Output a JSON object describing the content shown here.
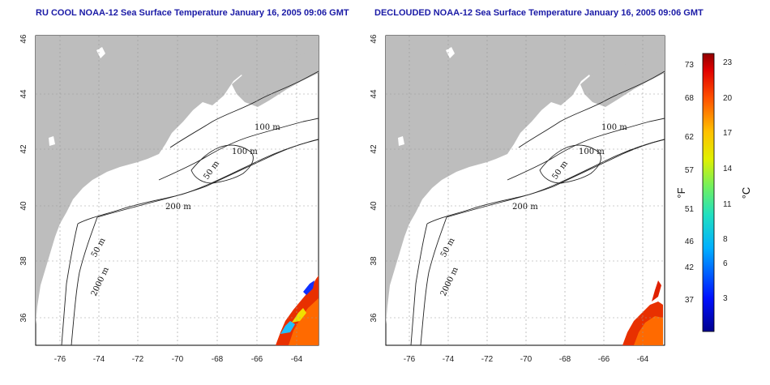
{
  "panels": [
    {
      "title": "RU COOL NOAA-12 Sea Surface Temperature January 16, 2005 09:06 GMT",
      "contour_labels": [
        "100 m",
        "100 m",
        "50 m",
        "200 m",
        "50 m",
        "2000 m"
      ]
    },
    {
      "title": "DECLOUDED NOAA-12 Sea Surface Temperature January 16, 2005 09:06 GMT",
      "contour_labels": [
        "100 m",
        "100 m",
        "50 m",
        "200 m",
        "50 m",
        "2000 m"
      ]
    }
  ],
  "axes": {
    "lon_ticks": [
      "-76",
      "-74",
      "-72",
      "-70",
      "-68",
      "-66",
      "-64"
    ],
    "lat_ticks": [
      "46",
      "44",
      "42",
      "40",
      "38",
      "36"
    ]
  },
  "colorbar": {
    "fahrenheit_ticks": [
      "73",
      "68",
      "62",
      "57",
      "51",
      "46",
      "42",
      "37"
    ],
    "celsius_ticks": [
      "23",
      "20",
      "17",
      "14",
      "11",
      "8",
      "6",
      "3"
    ],
    "fahrenheit_label": "°F",
    "celsius_label": "°C"
  },
  "colors": {
    "land": "#bdbdbd",
    "ocean": "#ffffff",
    "title": "#1a1aa6"
  }
}
